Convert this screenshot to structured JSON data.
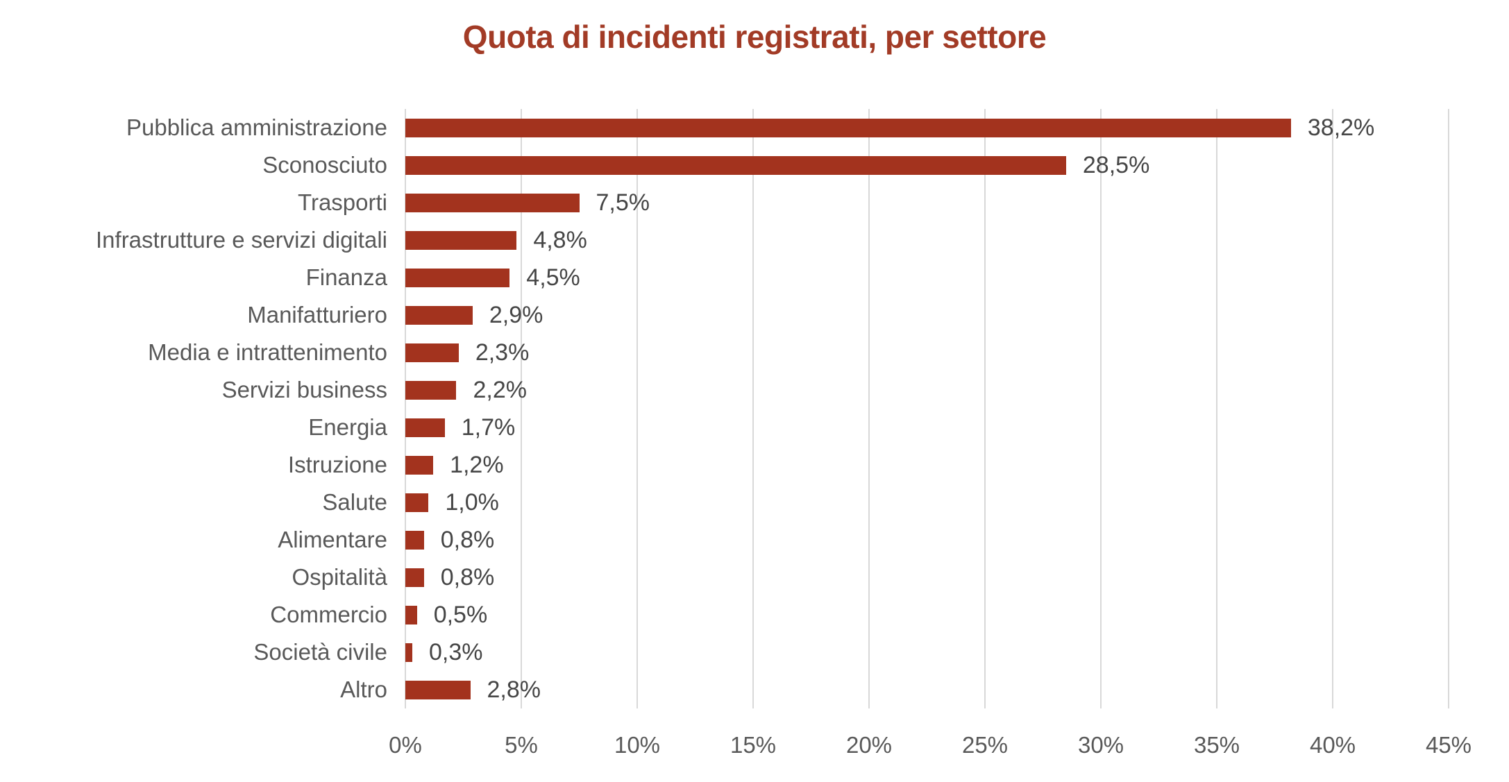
{
  "chart_data": {
    "type": "bar",
    "orientation": "horizontal",
    "title": "Quota di incidenti registrati, per settore",
    "categories": [
      "Pubblica amministrazione",
      "Sconosciuto",
      "Trasporti",
      "Infrastrutture e servizi digitali",
      "Finanza",
      "Manifatturiero",
      "Media e intrattenimento",
      "Servizi business",
      "Energia",
      "Istruzione",
      "Salute",
      "Alimentare",
      "Ospitalità",
      "Commercio",
      "Società civile",
      "Altro"
    ],
    "values": [
      38.2,
      28.5,
      7.5,
      4.8,
      4.5,
      2.9,
      2.3,
      2.2,
      1.7,
      1.2,
      1.0,
      0.8,
      0.8,
      0.5,
      0.3,
      2.8
    ],
    "value_labels": [
      "38,2%",
      "28,5%",
      "7,5%",
      "4,8%",
      "4,5%",
      "2,9%",
      "2,3%",
      "2,2%",
      "1,7%",
      "1,2%",
      "1,0%",
      "0,8%",
      "0,8%",
      "0,5%",
      "0,3%",
      "2,8%"
    ],
    "xlabel": "",
    "ylabel": "",
    "xlim": [
      0,
      45
    ],
    "x_tick_labels": [
      "0%",
      "5%",
      "10%",
      "15%",
      "20%",
      "25%",
      "30%",
      "35%",
      "40%",
      "45%"
    ],
    "x_tick_values": [
      0,
      5,
      10,
      15,
      20,
      25,
      30,
      35,
      40,
      45
    ],
    "grid": true,
    "legend": false,
    "colors": {
      "bar": "#A3331E",
      "title": "#A23B26",
      "category_label": "#595959",
      "value_label": "#464646",
      "gridline": "#D8D8D8",
      "background": "#FFFFFF"
    }
  }
}
